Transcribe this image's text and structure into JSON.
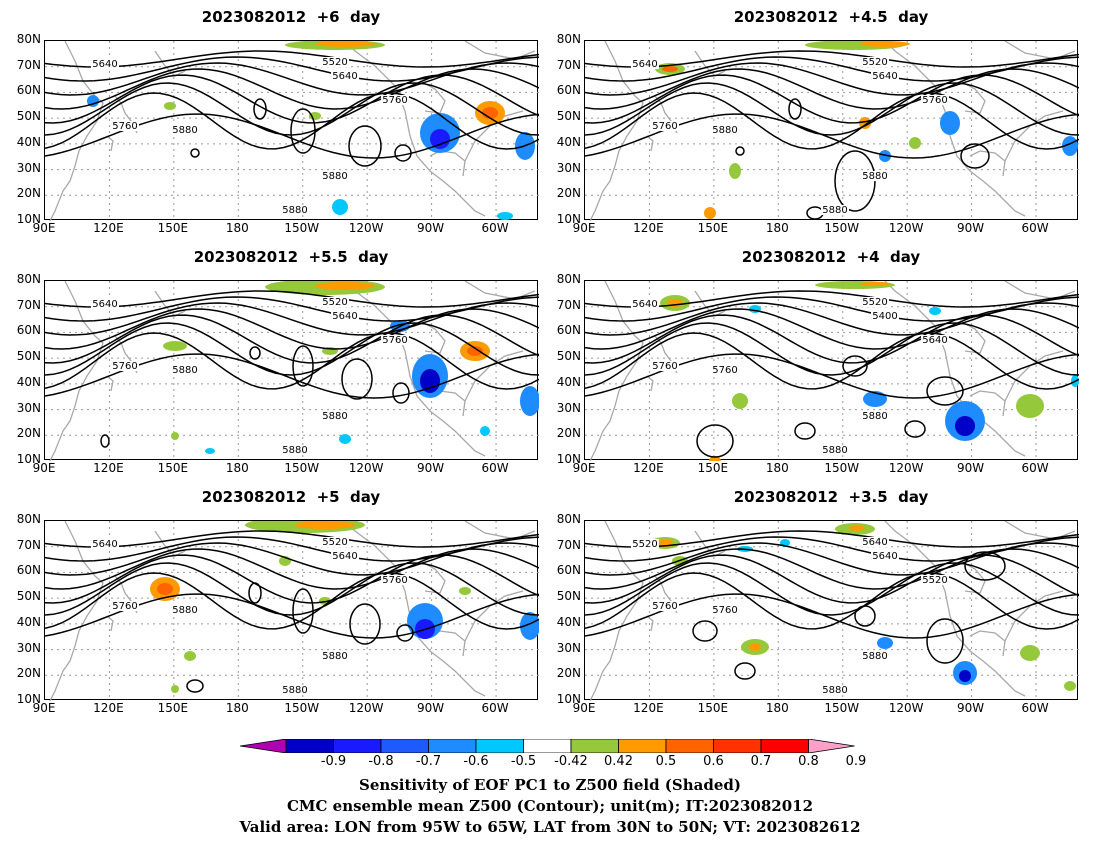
{
  "panels": [
    {
      "title": "2023082012  +6  day",
      "contour_labels": [
        "5640",
        "5520",
        "5640",
        "5760",
        "5760",
        "5880",
        "5880",
        "5880"
      ]
    },
    {
      "title": "2023082012  +4.5  day",
      "contour_labels": [
        "5640",
        "5520",
        "5640",
        "5760",
        "5760",
        "5880",
        "5880",
        "5880"
      ]
    },
    {
      "title": "2023082012  +5.5  day",
      "contour_labels": [
        "5640",
        "5520",
        "5640",
        "5760",
        "5760",
        "5880",
        "5880",
        "5880"
      ]
    },
    {
      "title": "2023082012  +4  day",
      "contour_labels": [
        "5640",
        "5520",
        "5400",
        "5640",
        "5760",
        "5760",
        "5880",
        "5880"
      ]
    },
    {
      "title": "2023082012  +5  day",
      "contour_labels": [
        "5640",
        "5520",
        "5640",
        "5760",
        "5760",
        "5880",
        "5880",
        "5880"
      ]
    },
    {
      "title": "2023082012  +3.5  day",
      "contour_labels": [
        "5520",
        "5640",
        "5640",
        "5520",
        "5760",
        "5760",
        "5880",
        "5880"
      ]
    }
  ],
  "map": {
    "lat_labels": [
      "80N",
      "70N",
      "60N",
      "50N",
      "40N",
      "30N",
      "20N",
      "10N"
    ],
    "lon_labels": [
      "90E",
      "120E",
      "150E",
      "180",
      "150W",
      "120W",
      "90W",
      "60W"
    ],
    "lat_range": [
      10,
      80
    ],
    "lon_range_east": [
      90,
      320
    ],
    "land_color": "#a8a8a8",
    "contour_color": "#000000",
    "grid_color": "#9a9a9a"
  },
  "colorbar": {
    "labels": [
      "-0.9",
      "-0.8",
      "-0.7",
      "-0.6",
      "-0.5",
      "-0.42",
      "0.42",
      "0.5",
      "0.6",
      "0.7",
      "0.8",
      "0.9"
    ],
    "colors": [
      "#b000b0",
      "#0000c8",
      "#1a1aff",
      "#1e5aff",
      "#1e8cff",
      "#00c8ff",
      "#ffffff",
      "#96c83c",
      "#ff9a00",
      "#ff6400",
      "#ff3200",
      "#ff0000",
      "#ffa0c8"
    ]
  },
  "footer": {
    "line1": "Sensitivity of EOF PC1 to Z500 field (Shaded)",
    "line2": "CMC ensemble mean Z500 (Contour); unit(m); IT:2023082012",
    "line3": "Valid area: LON from 95W to 65W, LAT from 30N to 50N; VT: 2023082612"
  }
}
